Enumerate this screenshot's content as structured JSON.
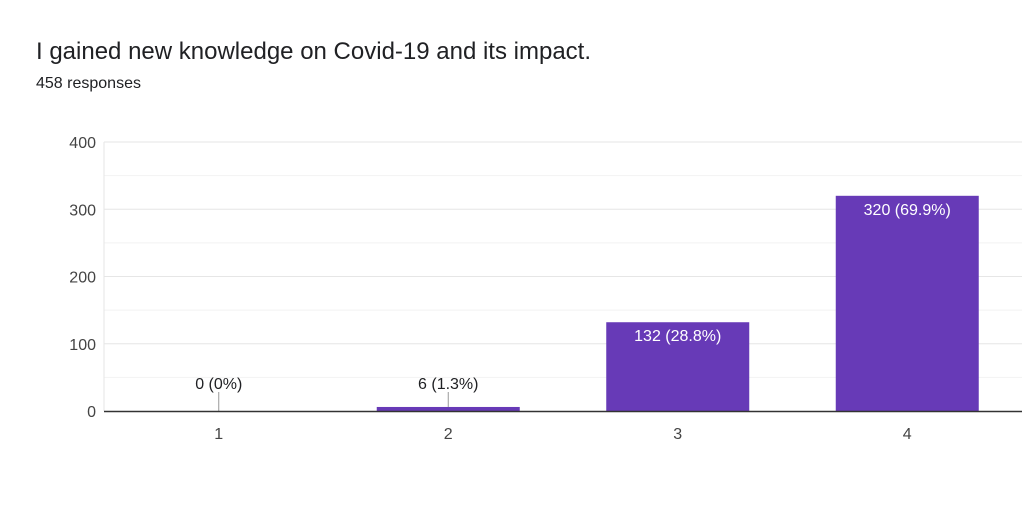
{
  "title": "I gained new knowledge on Covid-19 and its impact.",
  "responses": "458 responses",
  "colors": {
    "bar": "#673ab7",
    "grid": "#e6e6e6",
    "axis": "#333333",
    "text": "#202124",
    "label_inside": "#ffffff"
  },
  "chart_data": {
    "type": "bar",
    "categories": [
      "1",
      "2",
      "3",
      "4"
    ],
    "values": [
      0,
      6,
      132,
      320
    ],
    "data_labels": [
      "0 (0%)",
      "6 (1.3%)",
      "132 (28.8%)",
      "320 (69.9%)"
    ],
    "title": "I gained new knowledge on Covid-19 and its impact.",
    "xlabel": "",
    "ylabel": "",
    "ylim": [
      0,
      400
    ],
    "yticks": [
      0,
      100,
      200,
      300,
      400
    ],
    "grid": true,
    "legend": "none"
  }
}
